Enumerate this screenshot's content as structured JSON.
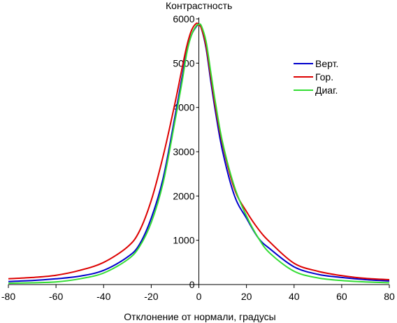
{
  "chart_data": {
    "type": "line",
    "title": "",
    "xlabel": "Отклонение от нормали, градусы",
    "ylabel": "Контрастность",
    "xlim": [
      -80,
      80
    ],
    "ylim": [
      0,
      6000
    ],
    "x_ticks": [
      "-80",
      "-60",
      "-40",
      "-20",
      "0",
      "20",
      "40",
      "60",
      "80"
    ],
    "y_ticks": [
      "0",
      "1000",
      "2000",
      "3000",
      "4000",
      "5000",
      "6000"
    ],
    "grid": false,
    "legend_position": "top-right",
    "series": [
      {
        "name": "Верт.",
        "color": "#0000cc",
        "x": [
          -80,
          -70,
          -60,
          -50,
          -40,
          -30,
          -25,
          -20,
          -15,
          -10,
          -7,
          -5,
          -3,
          -1,
          0,
          1,
          3,
          5,
          7,
          10,
          15,
          20,
          25,
          30,
          40,
          50,
          60,
          70,
          80
        ],
        "y": [
          70,
          90,
          130,
          190,
          320,
          620,
          900,
          1500,
          2400,
          3800,
          4700,
          5300,
          5650,
          5830,
          5870,
          5800,
          5350,
          4600,
          3900,
          3000,
          2000,
          1500,
          1050,
          800,
          400,
          230,
          160,
          110,
          80
        ]
      },
      {
        "name": "Гор.",
        "color": "#dd0000",
        "x": [
          -80,
          -70,
          -60,
          -50,
          -40,
          -30,
          -25,
          -20,
          -15,
          -10,
          -7,
          -5,
          -3,
          -1,
          0,
          1,
          3,
          5,
          7,
          10,
          15,
          20,
          25,
          30,
          40,
          50,
          60,
          70,
          80
        ],
        "y": [
          130,
          160,
          210,
          320,
          500,
          850,
          1200,
          1900,
          2900,
          4100,
          4900,
          5400,
          5750,
          5900,
          5850,
          5800,
          5400,
          4700,
          4000,
          3150,
          2150,
          1650,
          1250,
          950,
          480,
          300,
          200,
          140,
          110
        ]
      },
      {
        "name": "Диаг.",
        "color": "#33dd33",
        "x": [
          -80,
          -70,
          -60,
          -50,
          -40,
          -30,
          -25,
          -20,
          -15,
          -10,
          -7,
          -5,
          -3,
          -1,
          0,
          1,
          3,
          5,
          7,
          10,
          15,
          20,
          25,
          30,
          40,
          50,
          60,
          70,
          80
        ],
        "y": [
          30,
          40,
          60,
          130,
          260,
          560,
          850,
          1400,
          2300,
          3700,
          4600,
          5250,
          5650,
          5850,
          5870,
          5850,
          5500,
          4800,
          4100,
          3200,
          2200,
          1550,
          1050,
          700,
          300,
          150,
          90,
          60,
          40
        ]
      }
    ]
  }
}
